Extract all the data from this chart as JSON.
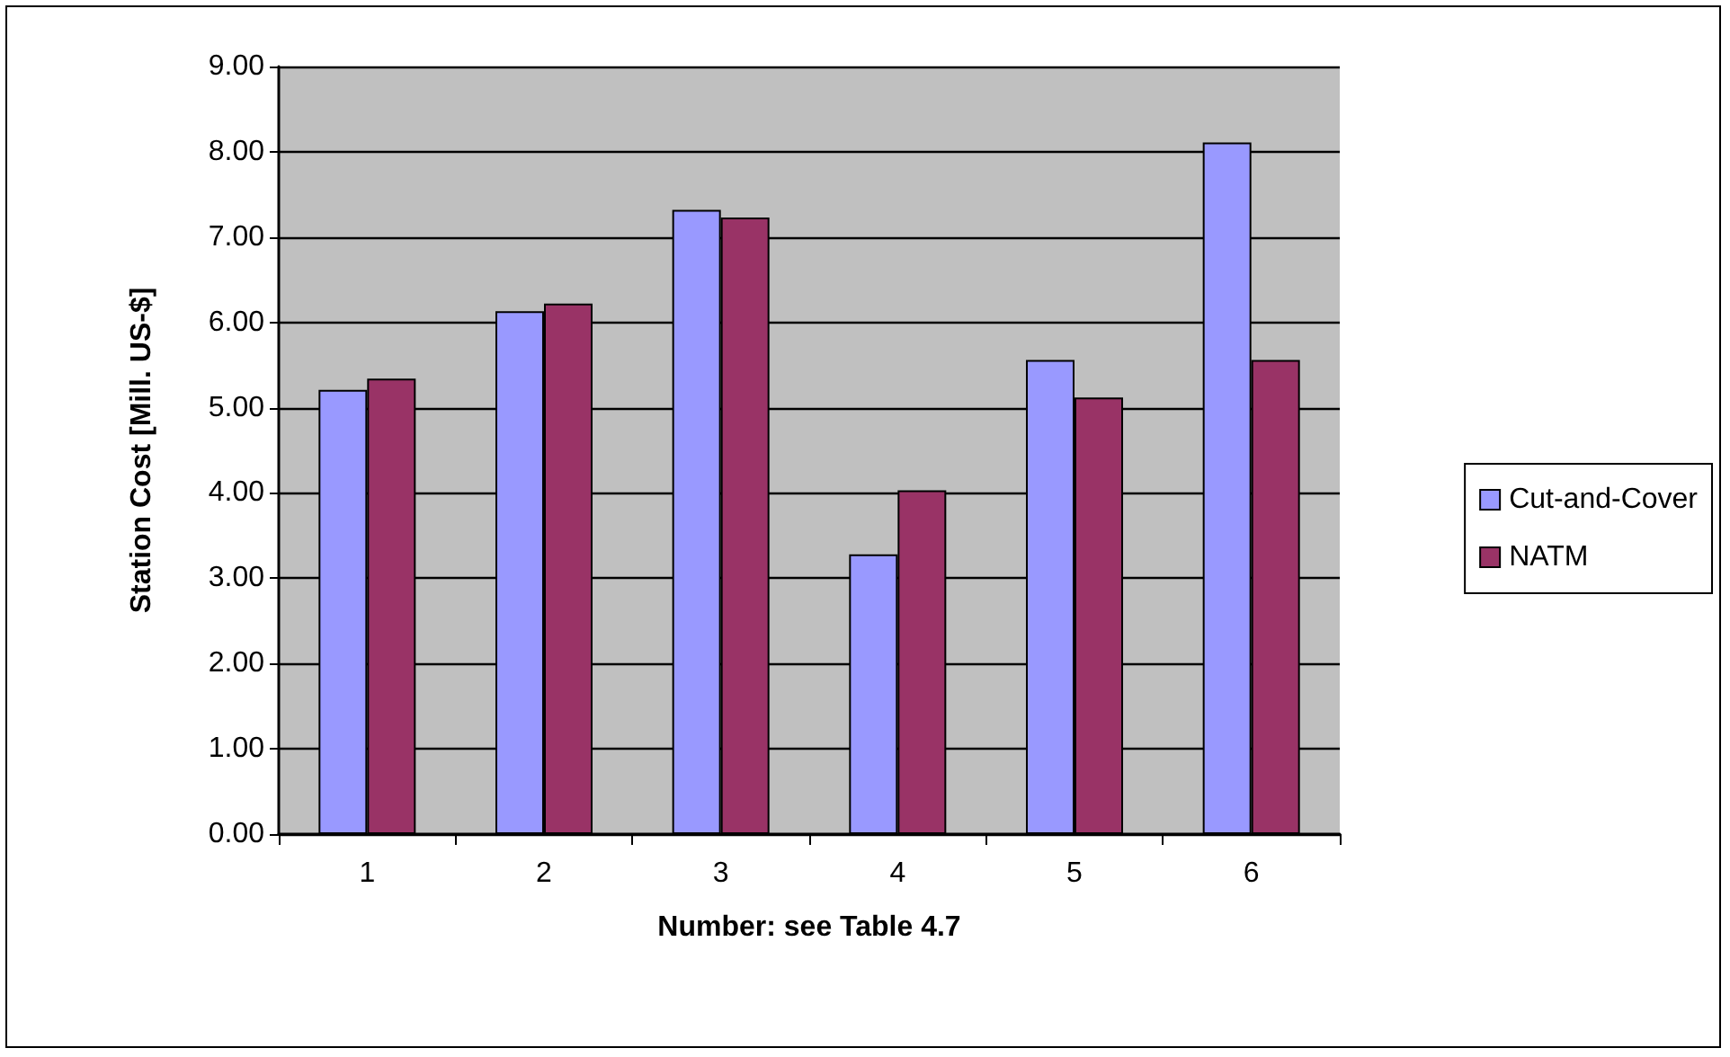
{
  "chart_data": {
    "type": "bar",
    "xlabel": "Number: see Table 4.7",
    "ylabel": "Station Cost [Mill. US-$]",
    "categories": [
      "1",
      "2",
      "3",
      "4",
      "5",
      "6"
    ],
    "series": [
      {
        "name": "Cut-and-Cover",
        "color": "#9999ff",
        "values": [
          5.21,
          6.13,
          7.32,
          3.28,
          5.56,
          8.11
        ]
      },
      {
        "name": "NATM",
        "color": "#993366",
        "values": [
          5.34,
          6.22,
          7.23,
          4.03,
          5.12,
          5.56
        ]
      }
    ],
    "ylim": [
      0,
      9
    ],
    "yticks": [
      {
        "value": 0,
        "label": "0.00"
      },
      {
        "value": 1,
        "label": "1.00"
      },
      {
        "value": 2,
        "label": "2.00"
      },
      {
        "value": 3,
        "label": "3.00"
      },
      {
        "value": 4,
        "label": "4.00"
      },
      {
        "value": 5,
        "label": "5.00"
      },
      {
        "value": 6,
        "label": "6.00"
      },
      {
        "value": 7,
        "label": "7.00"
      },
      {
        "value": 8,
        "label": "8.00"
      },
      {
        "value": 9,
        "label": "9.00"
      }
    ],
    "grid": "y",
    "legend": "right"
  }
}
